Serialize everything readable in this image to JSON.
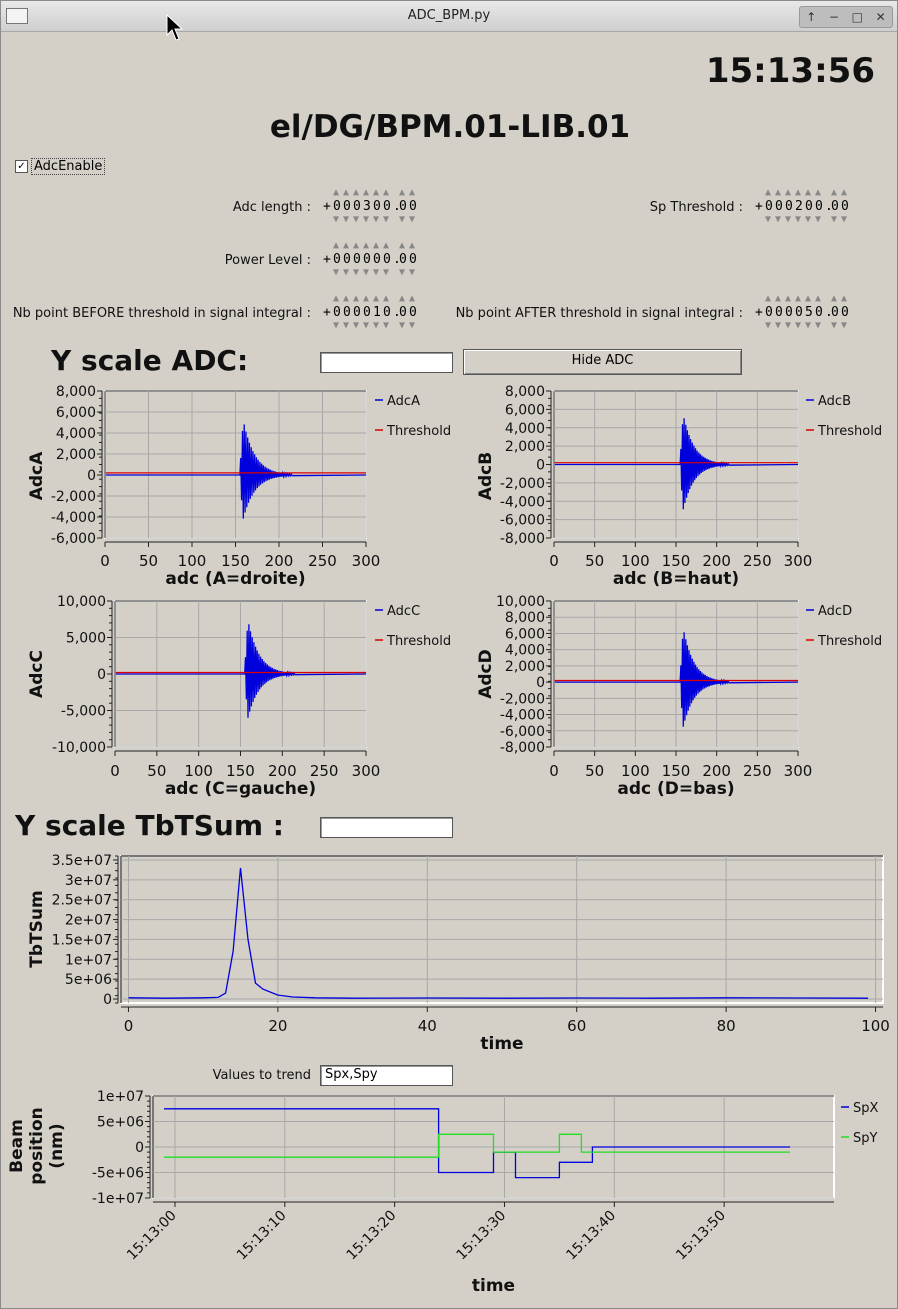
{
  "window": {
    "title": "ADC_BPM.py"
  },
  "clock": "15:13:56",
  "device_name": "el/DG/BPM.01-LIB.01",
  "adc_enable": {
    "label": "AdcEnable",
    "checked": true
  },
  "params": {
    "adc_length": {
      "label": "Adc length :",
      "value": "+000300.00"
    },
    "sp_threshold": {
      "label": "Sp Threshold :",
      "value": "+000200.00"
    },
    "power_level": {
      "label": "Power Level :",
      "value": "+000000.00"
    },
    "nb_before": {
      "label": "Nb point BEFORE threshold in signal integral :",
      "value": "+000010.00"
    },
    "nb_after": {
      "label": "Nb point AFTER threshold in signal integral :",
      "value": "+000050.00"
    }
  },
  "yscale_adc": {
    "label": "Y scale ADC:",
    "value": ""
  },
  "hide_adc_button": "Hide ADC",
  "yscale_tbt": {
    "label": "Y scale TbTSum :",
    "value": ""
  },
  "trend": {
    "label": "Values to trend",
    "value": "Spx,Spy"
  },
  "colors": {
    "blue": "#0000dd",
    "red": "#dd0000",
    "green": "#22dd22",
    "background": "#d4d0c8"
  },
  "chart_data": [
    {
      "id": "adcA",
      "type": "line",
      "ylabel": "AdcA",
      "xlabel": "adc  (A=droite)",
      "xlim": [
        0,
        300
      ],
      "ylim": [
        -6000,
        8000
      ],
      "xticks": [
        "0",
        "50",
        "100",
        "150",
        "200",
        "250",
        "300"
      ],
      "yticks": [
        "8,000",
        "6,000",
        "4,000",
        "2,000",
        "0",
        "-2,000",
        "-4,000",
        "-6,000"
      ],
      "series": [
        {
          "name": "AdcA",
          "color": "#0000dd",
          "baseline": 0,
          "burst_start": 155,
          "peak_pos": 6500,
          "peak_neg": -5200,
          "decay": 40
        },
        {
          "name": "Threshold",
          "color": "#dd0000",
          "constant": 200
        }
      ]
    },
    {
      "id": "adcB",
      "type": "line",
      "ylabel": "AdcB",
      "xlabel": "adc  (B=haut)",
      "xlim": [
        0,
        300
      ],
      "ylim": [
        -8000,
        8000
      ],
      "xticks": [
        "0",
        "50",
        "100",
        "150",
        "200",
        "250",
        "300"
      ],
      "yticks": [
        "8,000",
        "6,000",
        "4,000",
        "2,000",
        "0",
        "-2,000",
        "-4,000",
        "-6,000",
        "-8,000"
      ],
      "series": [
        {
          "name": "AdcB",
          "color": "#0000dd",
          "baseline": 0,
          "burst_start": 155,
          "peak_pos": 6800,
          "peak_neg": -6100,
          "decay": 40
        },
        {
          "name": "Threshold",
          "color": "#dd0000",
          "constant": 200
        }
      ]
    },
    {
      "id": "adcC",
      "type": "line",
      "ylabel": "AdcC",
      "xlabel": "adc  (C=gauche)",
      "xlim": [
        0,
        300
      ],
      "ylim": [
        -10000,
        10000
      ],
      "xticks": [
        "0",
        "50",
        "100",
        "150",
        "200",
        "250",
        "300"
      ],
      "yticks": [
        "10,000",
        "5,000",
        "0",
        "-5,000",
        "-10,000"
      ],
      "series": [
        {
          "name": "AdcC",
          "color": "#0000dd",
          "baseline": 0,
          "burst_start": 155,
          "peak_pos": 9200,
          "peak_neg": -7500,
          "decay": 40
        },
        {
          "name": "Threshold",
          "color": "#dd0000",
          "constant": 200
        }
      ]
    },
    {
      "id": "adcD",
      "type": "line",
      "ylabel": "AdcD",
      "xlabel": "adc  (D=bas)",
      "xlim": [
        0,
        300
      ],
      "ylim": [
        -8000,
        10000
      ],
      "xticks": [
        "0",
        "50",
        "100",
        "150",
        "200",
        "250",
        "300"
      ],
      "yticks": [
        "10,000",
        "8,000",
        "6,000",
        "4,000",
        "2,000",
        "0",
        "-2,000",
        "-4,000",
        "-6,000",
        "-8,000"
      ],
      "series": [
        {
          "name": "AdcD",
          "color": "#0000dd",
          "baseline": 0,
          "burst_start": 155,
          "peak_pos": 8300,
          "peak_neg": -6900,
          "decay": 40
        },
        {
          "name": "Threshold",
          "color": "#dd0000",
          "constant": 200
        }
      ]
    },
    {
      "id": "tbt",
      "type": "line",
      "ylabel": "TbTSum",
      "xlabel": "time",
      "xlim": [
        -1,
        101
      ],
      "ylim": [
        -1000000,
        36000000
      ],
      "xticks": [
        "0",
        "20",
        "40",
        "60",
        "80",
        "100"
      ],
      "yticks": [
        "3.5e+07",
        "3e+07",
        "2.5e+07",
        "2e+07",
        "1.5e+07",
        "1e+07",
        "5e+06",
        "0"
      ],
      "series": [
        {
          "name": "TbTSum",
          "color": "#0000dd",
          "x": [
            0,
            5,
            10,
            12,
            13,
            14,
            15,
            16,
            17,
            18,
            20,
            22,
            25,
            30,
            40,
            50,
            60,
            70,
            80,
            90,
            99
          ],
          "y": [
            300000,
            200000,
            300000,
            400000,
            1500000,
            12000000,
            33000000,
            15000000,
            4000000,
            2500000,
            1000000,
            500000,
            300000,
            200000,
            250000,
            200000,
            250000,
            200000,
            300000,
            250000,
            200000
          ]
        }
      ]
    },
    {
      "id": "trend",
      "type": "line",
      "ylabel": "Beam position (nm)",
      "xlabel": "time",
      "xlim": [
        "15:12:58",
        "15:14:00"
      ],
      "ylim": [
        -10000000,
        10000000
      ],
      "xticks": [
        "15:13:00",
        "15:13:10",
        "15:13:20",
        "15:13:30",
        "15:13:40",
        "15:13:50"
      ],
      "yticks": [
        "1e+07",
        "5e+06",
        "0",
        "-5e+06",
        "-1e+07"
      ],
      "series": [
        {
          "name": "SpX",
          "color": "#0000dd",
          "x": [
            "15:12:59",
            "15:13:24",
            "15:13:24",
            "15:13:29",
            "15:13:29",
            "15:13:31",
            "15:13:31",
            "15:13:35",
            "15:13:35",
            "15:13:38",
            "15:13:38",
            "15:13:56"
          ],
          "y": [
            7500000,
            7500000,
            -5000000,
            -5000000,
            -1000000,
            -1000000,
            -6000000,
            -6000000,
            -3000000,
            -3000000,
            0,
            0
          ]
        },
        {
          "name": "SpY",
          "color": "#22dd22",
          "x": [
            "15:12:59",
            "15:13:24",
            "15:13:24",
            "15:13:29",
            "15:13:29",
            "15:13:35",
            "15:13:35",
            "15:13:37",
            "15:13:37",
            "15:13:56"
          ],
          "y": [
            -2000000,
            -2000000,
            2500000,
            2500000,
            -1000000,
            -1000000,
            2500000,
            2500000,
            -1000000,
            -1000000
          ]
        }
      ]
    }
  ]
}
